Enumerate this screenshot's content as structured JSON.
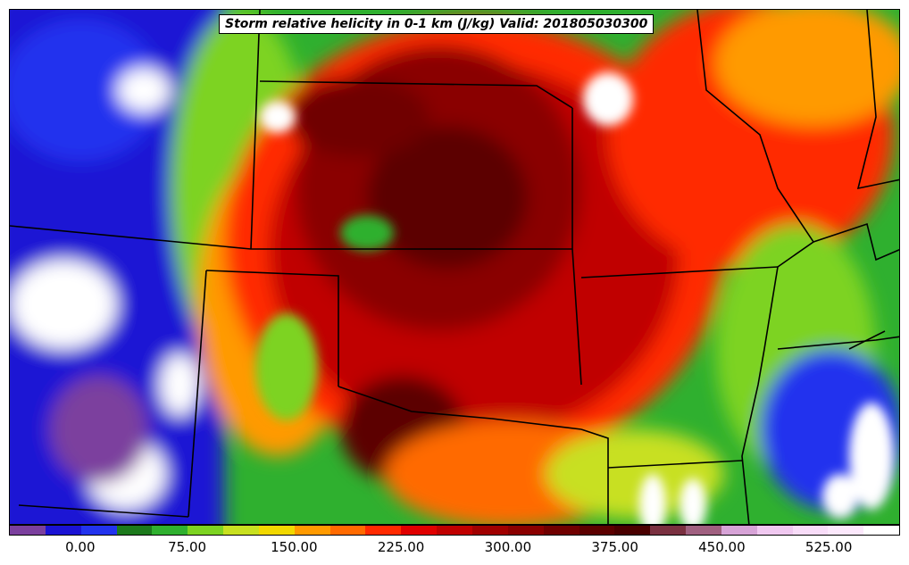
{
  "title": "Storm relative helicity in 0-1 km (J/kg) Valid: 201805030300",
  "colorbar": {
    "levels": [
      -50,
      -25,
      0,
      25,
      50,
      75,
      100,
      125,
      150,
      175,
      200,
      225,
      250,
      275,
      300,
      325,
      350,
      375,
      400,
      425,
      450,
      475,
      500,
      525,
      550,
      575
    ],
    "colors": [
      "#7b3f9e",
      "#1a12d4",
      "#2233ee",
      "#1c7a1c",
      "#2fb02f",
      "#7dd321",
      "#c8e020",
      "#f2d800",
      "#ff9a00",
      "#ff6a00",
      "#ff2a00",
      "#e00000",
      "#c00000",
      "#a00000",
      "#8a0000",
      "#700000",
      "#5c0000",
      "#4a0000",
      "#7a3040",
      "#a06080",
      "#d7a3d7",
      "#f0c8f0",
      "#f8dcf8",
      "#fce8fc",
      "#ffffff"
    ],
    "tick_labels": [
      "0.00",
      "75.00",
      "150.00",
      "225.00",
      "300.00",
      "375.00",
      "450.00",
      "525.00"
    ],
    "tick_values": [
      0,
      75,
      150,
      225,
      300,
      375,
      450,
      525
    ]
  }
}
